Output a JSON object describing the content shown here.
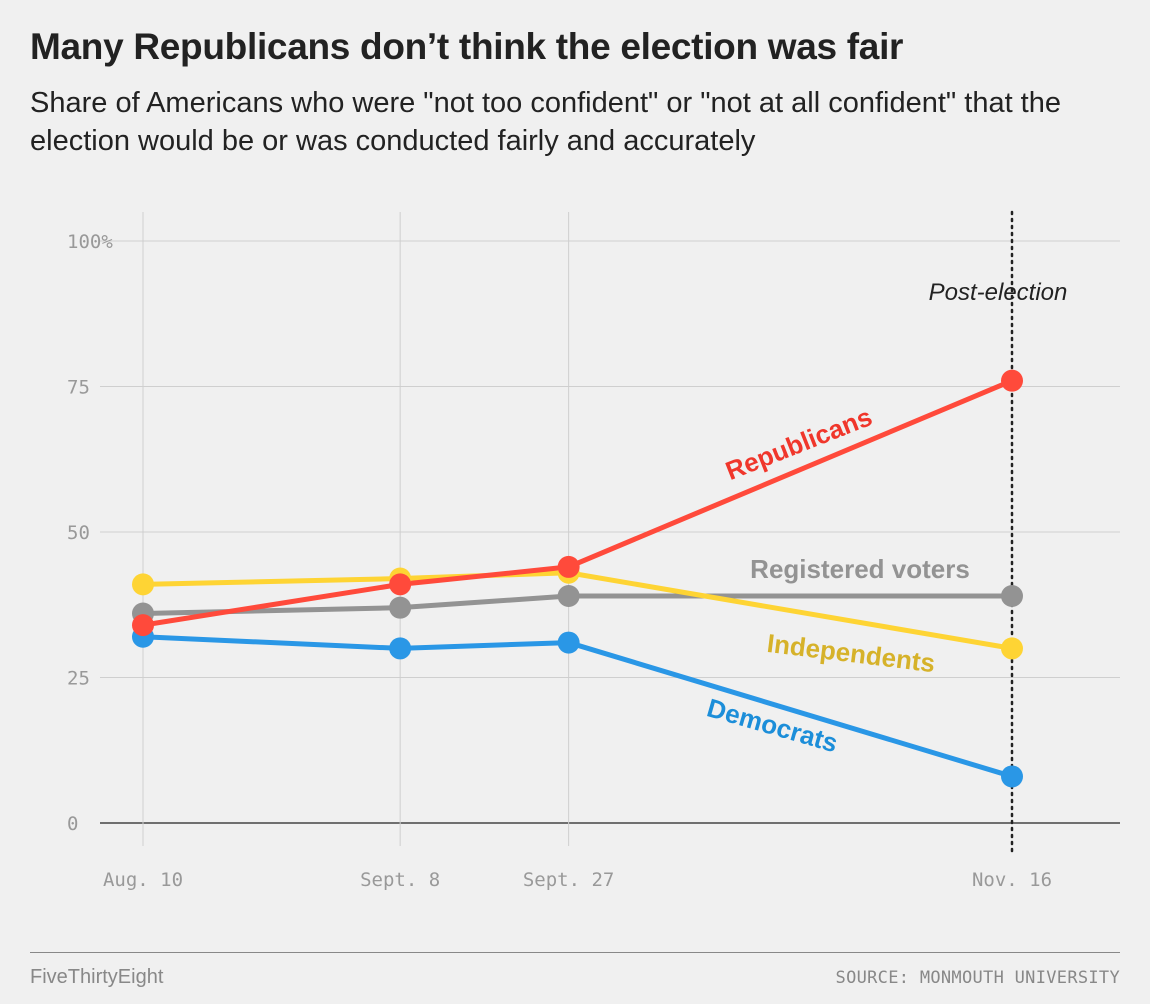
{
  "header": {
    "title": "Many Republicans don’t think the election was fair",
    "subtitle": "Share of Americans who were \"not too confident\" or \"not at all confident\" that the election would be or was conducted fairly and accurately"
  },
  "chart_data": {
    "type": "line",
    "title": "Many Republicans don’t think the election was fair",
    "categories": [
      "Aug. 10",
      "Sept. 8",
      "Sept. 27",
      "Nov. 16"
    ],
    "x_days": [
      0,
      29,
      48,
      98
    ],
    "ylim": [
      0,
      100
    ],
    "yticks": [
      0,
      25,
      50,
      75,
      100
    ],
    "ytick_labels": [
      "0",
      "25",
      "50",
      "75",
      "100%"
    ],
    "grid": true,
    "annotation": "Post-election",
    "series": [
      {
        "name": "Registered voters",
        "color": "#939393",
        "values": [
          36,
          37,
          39,
          39
        ]
      },
      {
        "name": "Independents",
        "color": "#fed434",
        "label_color": "#d6b22a",
        "values": [
          41,
          42,
          43,
          30
        ]
      },
      {
        "name": "Democrats",
        "color": "#2a97e6",
        "label_color": "#1c8ed9",
        "values": [
          32,
          30,
          31,
          8
        ]
      },
      {
        "name": "Republicans",
        "color": "#ff4a3b",
        "label_color": "#f0362b",
        "values": [
          34,
          41,
          44,
          76
        ]
      }
    ]
  },
  "footer": {
    "brand": "FiveThirtyEight",
    "source": "SOURCE: MONMOUTH UNIVERSITY"
  }
}
